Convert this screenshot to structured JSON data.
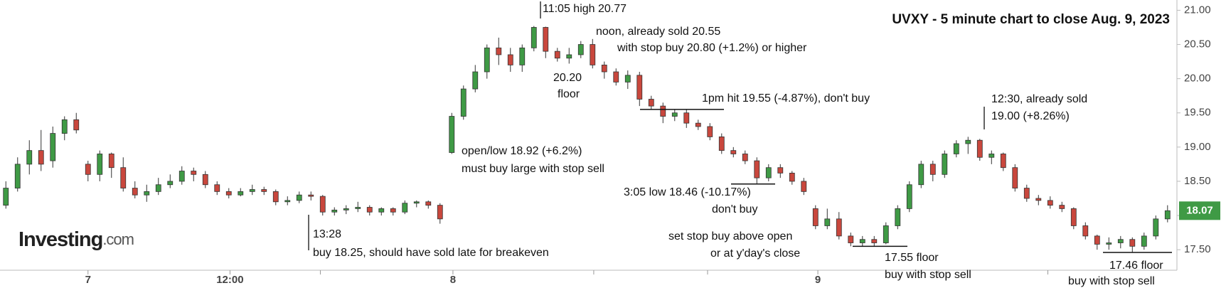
{
  "chart_data": {
    "type": "candlestick",
    "title": "UVXY - 5 minute chart to close Aug. 9, 2023",
    "watermark": [
      "Investing",
      ".com"
    ],
    "up_color": "#3f9a45",
    "down_color": "#c9473d",
    "grid": false,
    "ylim": [
      17.2,
      21.15
    ],
    "yticks": [
      {
        "value": 17.5,
        "label": "17.50"
      },
      {
        "value": 18,
        "label": "18.00"
      },
      {
        "value": 18.5,
        "label": "18.50"
      },
      {
        "value": 19,
        "label": "19.00"
      },
      {
        "value": 19.5,
        "label": "19.50"
      },
      {
        "value": 20,
        "label": "20.00"
      },
      {
        "value": 20.5,
        "label": "20.50"
      },
      {
        "value": 21,
        "label": "21.00"
      }
    ],
    "last_price": 18.07,
    "xlim": [
      -0.5,
      99.8
    ],
    "xticks": [
      {
        "value": 7,
        "label": "7"
      },
      {
        "value": 19.1,
        "label": "12:00"
      },
      {
        "value": 38.1,
        "label": "8"
      },
      {
        "value": 69.2,
        "label": "9"
      }
    ],
    "xminorticks": [
      26.8,
      50.1,
      59.8,
      79.5,
      88.8
    ],
    "candles": [
      [
        18.15,
        18.5,
        18.1,
        18.4
      ],
      [
        18.4,
        18.85,
        18.35,
        18.75
      ],
      [
        18.75,
        19.1,
        18.6,
        18.95
      ],
      [
        18.95,
        19.25,
        18.65,
        18.75
      ],
      [
        18.8,
        19.3,
        18.7,
        19.2
      ],
      [
        19.2,
        19.45,
        19.1,
        19.4
      ],
      [
        19.4,
        19.5,
        19.2,
        19.25
      ],
      [
        18.75,
        18.8,
        18.5,
        18.6
      ],
      [
        18.6,
        18.95,
        18.5,
        18.9
      ],
      [
        18.9,
        18.92,
        18.55,
        18.7
      ],
      [
        18.7,
        18.85,
        18.35,
        18.4
      ],
      [
        18.4,
        18.5,
        18.25,
        18.3
      ],
      [
        18.3,
        18.45,
        18.2,
        18.35
      ],
      [
        18.35,
        18.55,
        18.3,
        18.45
      ],
      [
        18.45,
        18.6,
        18.4,
        18.5
      ],
      [
        18.5,
        18.72,
        18.45,
        18.65
      ],
      [
        18.65,
        18.7,
        18.5,
        18.6
      ],
      [
        18.6,
        18.65,
        18.4,
        18.45
      ],
      [
        18.45,
        18.5,
        18.3,
        18.35
      ],
      [
        18.35,
        18.4,
        18.25,
        18.3
      ],
      [
        18.3,
        18.4,
        18.28,
        18.35
      ],
      [
        18.35,
        18.45,
        18.3,
        18.38
      ],
      [
        18.38,
        18.42,
        18.3,
        18.35
      ],
      [
        18.35,
        18.38,
        18.15,
        18.2
      ],
      [
        18.2,
        18.28,
        18.15,
        18.22
      ],
      [
        18.22,
        18.35,
        18.18,
        18.3
      ],
      [
        18.3,
        18.35,
        18.22,
        18.28
      ],
      [
        18.28,
        18.3,
        18.0,
        18.05
      ],
      [
        18.05,
        18.12,
        18.0,
        18.08
      ],
      [
        18.08,
        18.15,
        18.02,
        18.1
      ],
      [
        18.1,
        18.2,
        18.05,
        18.12
      ],
      [
        18.12,
        18.15,
        18.0,
        18.05
      ],
      [
        18.05,
        18.12,
        18.0,
        18.1
      ],
      [
        18.1,
        18.12,
        18.0,
        18.05
      ],
      [
        18.05,
        18.22,
        18.02,
        18.18
      ],
      [
        18.18,
        18.22,
        18.12,
        18.2
      ],
      [
        18.2,
        18.22,
        18.1,
        18.15
      ],
      [
        18.15,
        18.18,
        17.88,
        17.95
      ],
      [
        18.92,
        19.5,
        18.9,
        19.45
      ],
      [
        19.45,
        19.9,
        19.4,
        19.85
      ],
      [
        19.85,
        20.2,
        19.8,
        20.1
      ],
      [
        20.1,
        20.5,
        20.0,
        20.45
      ],
      [
        20.45,
        20.6,
        20.2,
        20.35
      ],
      [
        20.35,
        20.45,
        20.1,
        20.2
      ],
      [
        20.2,
        20.5,
        20.1,
        20.45
      ],
      [
        20.45,
        20.77,
        20.4,
        20.75
      ],
      [
        20.75,
        20.76,
        20.3,
        20.4
      ],
      [
        20.4,
        20.45,
        20.25,
        20.3
      ],
      [
        20.3,
        20.45,
        20.22,
        20.35
      ],
      [
        20.35,
        20.55,
        20.3,
        20.5
      ],
      [
        20.5,
        20.58,
        20.15,
        20.2
      ],
      [
        20.2,
        20.25,
        20.0,
        20.1
      ],
      [
        20.1,
        20.15,
        19.9,
        19.95
      ],
      [
        19.95,
        20.12,
        19.85,
        20.05
      ],
      [
        20.05,
        20.1,
        19.6,
        19.7
      ],
      [
        19.7,
        19.75,
        19.55,
        19.6
      ],
      [
        19.6,
        19.65,
        19.35,
        19.45
      ],
      [
        19.45,
        19.55,
        19.38,
        19.5
      ],
      [
        19.5,
        19.55,
        19.28,
        19.35
      ],
      [
        19.35,
        19.4,
        19.25,
        19.3
      ],
      [
        19.3,
        19.35,
        19.1,
        19.15
      ],
      [
        19.15,
        19.2,
        18.9,
        18.95
      ],
      [
        18.95,
        19.0,
        18.85,
        18.9
      ],
      [
        18.9,
        18.95,
        18.75,
        18.8
      ],
      [
        18.8,
        18.85,
        18.46,
        18.55
      ],
      [
        18.55,
        18.75,
        18.5,
        18.7
      ],
      [
        18.7,
        18.75,
        18.55,
        18.62
      ],
      [
        18.62,
        18.65,
        18.45,
        18.5
      ],
      [
        18.5,
        18.55,
        18.3,
        18.35
      ],
      [
        18.1,
        18.15,
        17.8,
        17.85
      ],
      [
        17.85,
        18.1,
        17.8,
        17.95
      ],
      [
        17.95,
        18.05,
        17.65,
        17.7
      ],
      [
        17.7,
        17.75,
        17.55,
        17.6
      ],
      [
        17.6,
        17.7,
        17.55,
        17.65
      ],
      [
        17.65,
        17.7,
        17.55,
        17.6
      ],
      [
        17.6,
        17.9,
        17.58,
        17.85
      ],
      [
        17.85,
        18.15,
        17.8,
        18.1
      ],
      [
        18.1,
        18.5,
        18.05,
        18.45
      ],
      [
        18.45,
        18.8,
        18.4,
        18.75
      ],
      [
        18.75,
        18.8,
        18.5,
        18.6
      ],
      [
        18.6,
        18.95,
        18.55,
        18.9
      ],
      [
        18.9,
        19.1,
        18.85,
        19.05
      ],
      [
        19.05,
        19.15,
        18.9,
        19.1
      ],
      [
        19.1,
        19.12,
        18.8,
        18.85
      ],
      [
        18.85,
        18.95,
        18.75,
        18.9
      ],
      [
        18.9,
        18.92,
        18.65,
        18.7
      ],
      [
        18.7,
        18.75,
        18.35,
        18.4
      ],
      [
        18.4,
        18.45,
        18.2,
        18.25
      ],
      [
        18.25,
        18.3,
        18.15,
        18.22
      ],
      [
        18.22,
        18.28,
        18.1,
        18.15
      ],
      [
        18.15,
        18.2,
        18.05,
        18.1
      ],
      [
        18.1,
        18.12,
        17.8,
        17.85
      ],
      [
        17.85,
        17.9,
        17.65,
        17.7
      ],
      [
        17.7,
        17.72,
        17.5,
        17.58
      ],
      [
        17.58,
        17.68,
        17.5,
        17.6
      ],
      [
        17.6,
        17.7,
        17.52,
        17.65
      ],
      [
        17.65,
        17.68,
        17.46,
        17.55
      ],
      [
        17.55,
        17.75,
        17.5,
        17.7
      ],
      [
        17.7,
        18.0,
        17.65,
        17.95
      ],
      [
        17.95,
        18.15,
        17.9,
        18.07
      ]
    ],
    "reference_lines": [
      19.55,
      18.46,
      17.55,
      17.46
    ],
    "annotations": [
      {
        "lines": [
          "11:05 high 20.77"
        ]
      },
      {
        "lines": [
          "noon, already sold 20.55",
          "with stop buy 20.80 (+1.2%) or higher"
        ]
      },
      {
        "lines": [
          "20.20",
          "floor"
        ]
      },
      {
        "lines": [
          "1pm hit 19.55 (-4.87%), don't buy"
        ]
      },
      {
        "lines": [
          "open/low 18.92 (+6.2%)",
          "must buy large with stop sell"
        ]
      },
      {
        "lines": [
          "3:05 low 18.46 (-10.17%)",
          "don't buy"
        ]
      },
      {
        "lines": [
          "set stop buy above open",
          "or at y'day's close"
        ]
      },
      {
        "lines": [
          "17.55 floor",
          "buy with stop sell"
        ]
      },
      {
        "lines": [
          "12:30, already sold",
          "19.00 (+8.26%)"
        ]
      },
      {
        "lines": [
          "17.46 floor",
          "buy with stop sell"
        ]
      },
      {
        "lines": [
          "13:28",
          "buy 18.25, should have sold late for breakeven"
        ]
      }
    ]
  }
}
